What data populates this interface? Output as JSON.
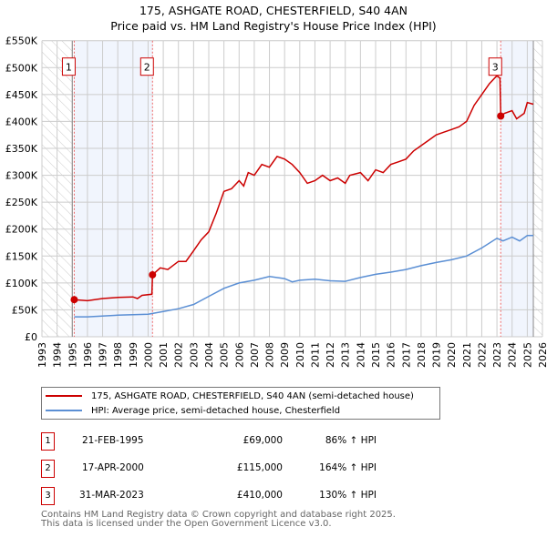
{
  "title_line1": "175, ASHGATE ROAD, CHESTERFIELD, S40 4AN",
  "title_line2": "Price paid vs. HM Land Registry's House Price Index (HPI)",
  "chart_data": {
    "type": "line",
    "title": "175, ASHGATE ROAD, CHESTERFIELD, S40 4AN - Price paid vs. HM Land Registry's House Price Index (HPI)",
    "xlim": [
      1993,
      2026
    ],
    "ylim": [
      0,
      550000
    ],
    "grid": true,
    "x_ticks": [
      "1993",
      "1994",
      "1995",
      "1996",
      "1997",
      "1998",
      "1999",
      "2000",
      "2001",
      "2002",
      "2003",
      "2004",
      "2005",
      "2006",
      "2007",
      "2008",
      "2009",
      "2010",
      "2011",
      "2012",
      "2013",
      "2014",
      "2015",
      "2016",
      "2017",
      "2018",
      "2019",
      "2020",
      "2021",
      "2022",
      "2023",
      "2024",
      "2025",
      "2026"
    ],
    "y_ticks": [
      {
        "v": 0,
        "label": "£0"
      },
      {
        "v": 50000,
        "label": "£50K"
      },
      {
        "v": 100000,
        "label": "£100K"
      },
      {
        "v": 150000,
        "label": "£150K"
      },
      {
        "v": 200000,
        "label": "£200K"
      },
      {
        "v": 250000,
        "label": "£250K"
      },
      {
        "v": 300000,
        "label": "£300K"
      },
      {
        "v": 350000,
        "label": "£350K"
      },
      {
        "v": 400000,
        "label": "£400K"
      },
      {
        "v": 450000,
        "label": "£450K"
      },
      {
        "v": 500000,
        "label": "£500K"
      },
      {
        "v": 550000,
        "label": "£550K"
      }
    ],
    "data_start": 1995.0,
    "data_end": 2025.4,
    "shaded_ranges": [
      [
        1995.13,
        2000.29
      ],
      [
        2023.25,
        2025.4
      ]
    ],
    "series": [
      {
        "name": "175, ASHGATE ROAD, CHESTERFIELD, S40 4AN (semi-detached house)",
        "color": "#cc0000",
        "x": [
          1995.13,
          1996,
          1997,
          1998,
          1999,
          1999.3,
          1999.6,
          2000.25,
          2000.29,
          2000.8,
          2001.3,
          2002,
          2002.5,
          2003,
          2003.5,
          2004,
          2004.5,
          2005,
          2005.5,
          2006,
          2006.3,
          2006.6,
          2007,
          2007.5,
          2008,
          2008.5,
          2009,
          2009.5,
          2010,
          2010.5,
          2011,
          2011.5,
          2012,
          2012.5,
          2013,
          2013.3,
          2014,
          2014.5,
          2015,
          2015.5,
          2016,
          2016.5,
          2017,
          2017.5,
          2018,
          2018.5,
          2019,
          2019.5,
          2020,
          2020.5,
          2021,
          2021.5,
          2022,
          2022.5,
          2023,
          2023.2,
          2023.25,
          2023.5,
          2024,
          2024.3,
          2024.8,
          2025,
          2025.4
        ],
        "y": [
          69000,
          67000,
          71000,
          73000,
          74000,
          71000,
          77000,
          79000,
          115000,
          128000,
          125000,
          140000,
          140000,
          160000,
          180000,
          195000,
          230000,
          270000,
          275000,
          290000,
          280000,
          305000,
          300000,
          320000,
          315000,
          335000,
          330000,
          320000,
          305000,
          285000,
          290000,
          300000,
          290000,
          295000,
          285000,
          300000,
          305000,
          290000,
          310000,
          305000,
          320000,
          325000,
          330000,
          345000,
          355000,
          365000,
          375000,
          380000,
          385000,
          390000,
          400000,
          430000,
          450000,
          470000,
          485000,
          480000,
          410000,
          415000,
          420000,
          405000,
          415000,
          435000,
          432000
        ]
      },
      {
        "name": "HPI: Average price, semi-detached house, Chesterfield",
        "color": "#5b8fd4",
        "x": [
          1995.13,
          1996,
          1998,
          2000,
          2001,
          2002,
          2003,
          2004,
          2005,
          2006,
          2007,
          2008,
          2009,
          2009.5,
          2010,
          2011,
          2012,
          2013,
          2014,
          2015,
          2016,
          2017,
          2018,
          2019,
          2020,
          2021,
          2022,
          2023,
          2023.4,
          2024,
          2024.5,
          2025,
          2025.4
        ],
        "y": [
          37000,
          37000,
          40000,
          42000,
          47000,
          52000,
          60000,
          75000,
          90000,
          100000,
          105000,
          112000,
          108000,
          102000,
          105000,
          107000,
          104000,
          103000,
          110000,
          116000,
          120000,
          125000,
          132000,
          138000,
          143000,
          150000,
          165000,
          183000,
          178000,
          185000,
          178000,
          188000,
          188000
        ]
      }
    ],
    "sales": [
      {
        "id": "1",
        "x": 1995.13,
        "y": 69000
      },
      {
        "id": "2",
        "x": 2000.29,
        "y": 115000
      },
      {
        "id": "3",
        "x": 2023.25,
        "y": 410000
      }
    ]
  },
  "legend": {
    "property": "175, ASHGATE ROAD, CHESTERFIELD, S40 4AN (semi-detached house)",
    "hpi": "HPI: Average price, semi-detached house, Chesterfield"
  },
  "transactions": [
    {
      "id": "1",
      "date": "21-FEB-1995",
      "price": "£69,000",
      "hpi": "86% ↑ HPI"
    },
    {
      "id": "2",
      "date": "17-APR-2000",
      "price": "£115,000",
      "hpi": "164% ↑ HPI"
    },
    {
      "id": "3",
      "date": "31-MAR-2023",
      "price": "£410,000",
      "hpi": "130% ↑ HPI"
    }
  ],
  "footer_line1": "Contains HM Land Registry data © Crown copyright and database right 2025.",
  "footer_line2": "This data is licensed under the Open Government Licence v3.0."
}
